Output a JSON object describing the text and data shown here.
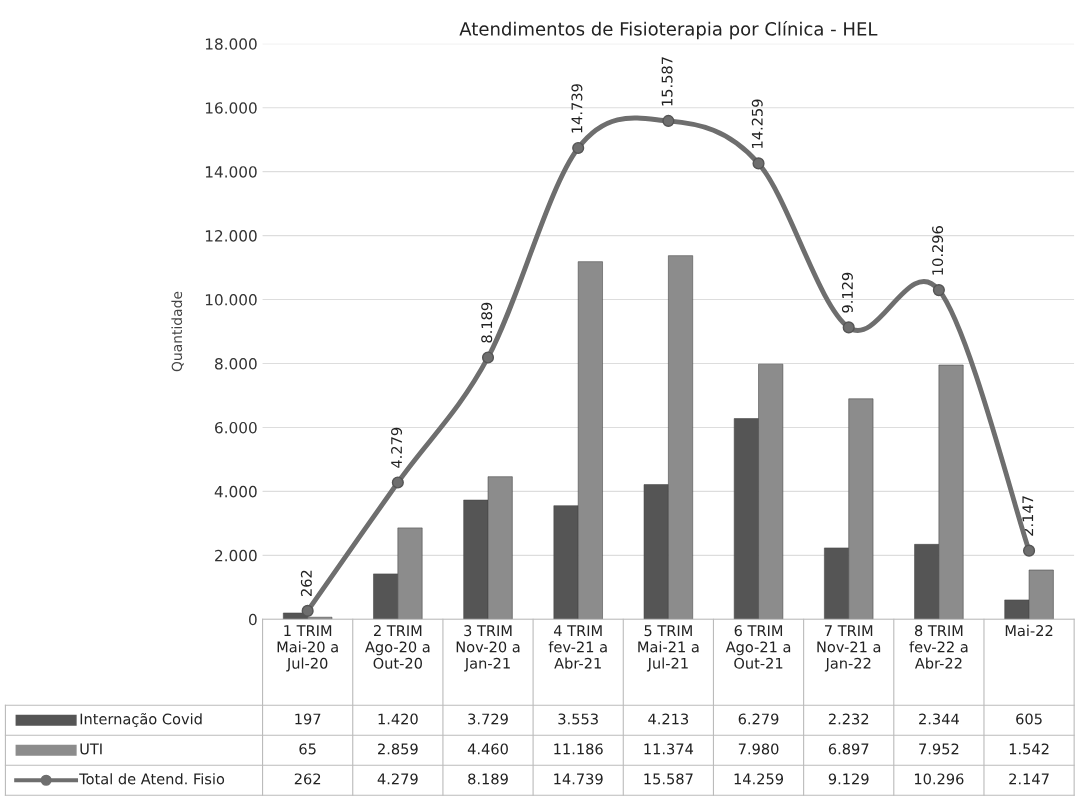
{
  "chart_data": {
    "type": "bar",
    "title": "Atendimentos de Fisioterapia por Clínica - HEL",
    "ylabel": "Quantidade",
    "categories": [
      "1 TRIM\nMai-20 a\nJul-20",
      "2 TRIM\nAgo-20 a\nOut-20",
      "3 TRIM\nNov-20 a\nJan-21",
      "4 TRIM\nfev-21 a\nAbr-21",
      "5 TRIM\nMai-21 a\nJul-21",
      "6 TRIM\nAgo-21 a\nOut-21",
      "7 TRIM\nNov-21 a\nJan-22",
      "8 TRIM\nfev-22 a\nAbr-22",
      "Mai-22"
    ],
    "series": [
      {
        "name": "Internação Covid",
        "color": "#555555",
        "values": [
          197,
          1420,
          3729,
          3553,
          4213,
          6279,
          2232,
          2344,
          605
        ],
        "value_labels": [
          "197",
          "1.420",
          "3.729",
          "3.553",
          "4.213",
          "6.279",
          "2.232",
          "2.344",
          "605"
        ]
      },
      {
        "name": "UTI",
        "color": "#8c8c8c",
        "values": [
          65,
          2859,
          4460,
          11186,
          11374,
          7980,
          6897,
          7952,
          1542
        ],
        "value_labels": [
          "65",
          "2.859",
          "4.460",
          "11.186",
          "11.374",
          "7.980",
          "6.897",
          "7.952",
          "1.542"
        ]
      },
      {
        "name": "Total de Atend. Fisio",
        "type": "line",
        "color": "#6e6e6e",
        "marker": "circle",
        "values": [
          262,
          4279,
          8189,
          14739,
          15587,
          14259,
          9129,
          10296,
          2147
        ],
        "value_labels": [
          "262",
          "4.279",
          "8.189",
          "14.739",
          "15.587",
          "14.259",
          "9.129",
          "10.296",
          "2.147"
        ]
      }
    ],
    "ylim": [
      0,
      18000
    ],
    "yticks": [
      {
        "value": 0,
        "label": "0"
      },
      {
        "value": 2000,
        "label": "2.000"
      },
      {
        "value": 4000,
        "label": "4.000"
      },
      {
        "value": 6000,
        "label": "6.000"
      },
      {
        "value": 8000,
        "label": "8.000"
      },
      {
        "value": 10000,
        "label": "10.000"
      },
      {
        "value": 12000,
        "label": "12.000"
      },
      {
        "value": 14000,
        "label": "14.000"
      },
      {
        "value": 16000,
        "label": "16.000"
      },
      {
        "value": 18000,
        "label": "18.000"
      }
    ],
    "grid": "y",
    "legend": "bottom left"
  }
}
